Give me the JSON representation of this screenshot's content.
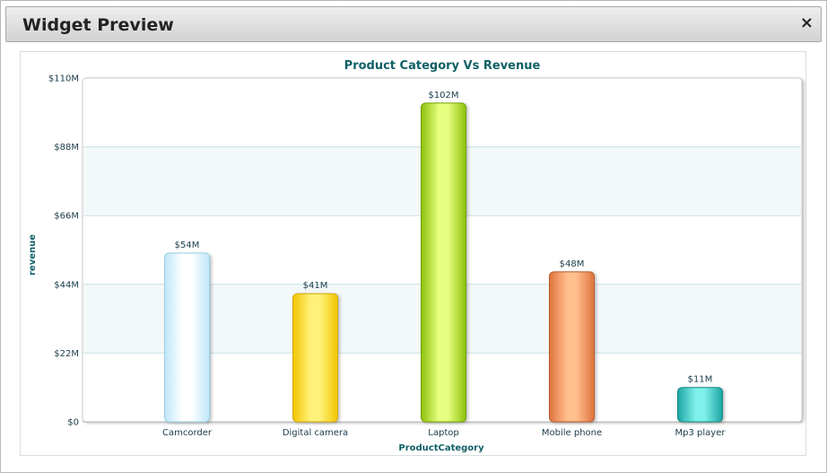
{
  "window": {
    "title": "Widget Preview",
    "close_glyph": "×"
  },
  "chart_data": {
    "type": "bar",
    "title": "Product Category Vs Revenue",
    "xlabel": "ProductCategory",
    "ylabel": "revenue",
    "categories": [
      "Camcorder",
      "Digital camera",
      "Laptop",
      "Mobile phone",
      "Mp3 player"
    ],
    "values": [
      54,
      41,
      102,
      48,
      11
    ],
    "data_labels": [
      "$54M",
      "$41M",
      "$102M",
      "$48M",
      "$11M"
    ],
    "ylim": [
      0,
      110
    ],
    "yticks": [
      0,
      22,
      44,
      66,
      88,
      110
    ],
    "ytick_labels": [
      "$0",
      "$22M",
      "$44M",
      "$66M",
      "$88M",
      "$110M"
    ],
    "grid": true,
    "legend": "none",
    "colors": [
      {
        "mid": "#ffffff",
        "dark": "#bfe6f8",
        "edge": "#9ccfe6"
      },
      {
        "mid": "#fff27a",
        "dark": "#f2c500",
        "edge": "#d3a900"
      },
      {
        "mid": "#e6ff80",
        "dark": "#8cc10a",
        "edge": "#75a300"
      },
      {
        "mid": "#ffbf8f",
        "dark": "#e0733c",
        "edge": "#b95a2b"
      },
      {
        "mid": "#7ff0ea",
        "dark": "#1ba5a3",
        "edge": "#168886"
      }
    ],
    "title_color": "#0f5f66",
    "axis_text_color": "#1a3b4a"
  }
}
